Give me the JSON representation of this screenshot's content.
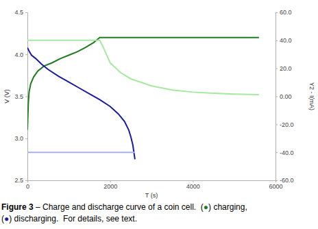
{
  "chart_data": {
    "type": "line",
    "x_label": "T (s)",
    "y_label": "V (V)",
    "y2_label": "Y2 - I(mA)",
    "xlim": [
      0,
      6000
    ],
    "xticks": [
      0,
      2000,
      4000,
      6000
    ],
    "ylim": [
      2.5,
      4.5
    ],
    "yticks": [
      2.5,
      {
        "value": 3,
        "label": "3.0"
      },
      3.5,
      {
        "value": 4,
        "label": "4.0"
      },
      4.5
    ],
    "y2lim": [
      -60,
      60
    ],
    "y2ticks": [
      {
        "value": -60,
        "label": "-60.0"
      },
      {
        "value": -40,
        "label": "-40.0"
      },
      {
        "value": -20,
        "label": "-20.0"
      },
      {
        "value": 0,
        "label": "0.00"
      },
      {
        "value": 20,
        "label": "20.0"
      },
      {
        "value": 40,
        "label": "40.0"
      },
      {
        "value": 60,
        "label": "60.0"
      }
    ],
    "grid": false,
    "series": [
      {
        "color": "#1e7b1e",
        "x": [
          0,
          10,
          20,
          40,
          80,
          150,
          250,
          400,
          600,
          800,
          1000,
          1200,
          1400,
          1600,
          1750,
          2500,
          3500,
          4500,
          5600
        ],
        "values": [
          3.1,
          3.25,
          3.4,
          3.55,
          3.65,
          3.73,
          3.8,
          3.86,
          3.9,
          3.95,
          3.99,
          4.03,
          4.08,
          4.14,
          4.2,
          4.2,
          4.2,
          4.2,
          4.2
        ]
      },
      {
        "color": "#a6e8a0",
        "axis": "y2",
        "x": [
          0,
          500,
          1000,
          1500,
          1750,
          1850,
          2000,
          2250,
          2500,
          3000,
          3500,
          4000,
          4500,
          5000,
          5600
        ],
        "values": [
          40,
          40,
          40,
          40,
          40,
          34,
          24,
          17,
          12.5,
          7.5,
          4.5,
          3,
          2.2,
          1.6,
          1.2
        ]
      },
      {
        "color": "#1a1aa6",
        "x": [
          0,
          50,
          100,
          200,
          350,
          500,
          750,
          1000,
          1250,
          1500,
          1750,
          2000,
          2200,
          2350,
          2450,
          2500,
          2550,
          2600
        ],
        "values": [
          4.08,
          4.03,
          3.99,
          3.95,
          3.88,
          3.82,
          3.74,
          3.67,
          3.6,
          3.53,
          3.46,
          3.38,
          3.29,
          3.2,
          3.1,
          3.02,
          2.92,
          2.75
        ]
      },
      {
        "color": "#a8b0f4",
        "axis": "y2",
        "x": [
          0,
          2600
        ],
        "values": [
          -40,
          -40
        ]
      }
    ],
    "caption": [
      [
        "Figure 3",
        " – Charge and discharge curve of a coin cell.  (",
        "●",
        ") charging,"
      ],
      [
        "(",
        "●",
        ") discharging.  For details, see text."
      ]
    ]
  }
}
